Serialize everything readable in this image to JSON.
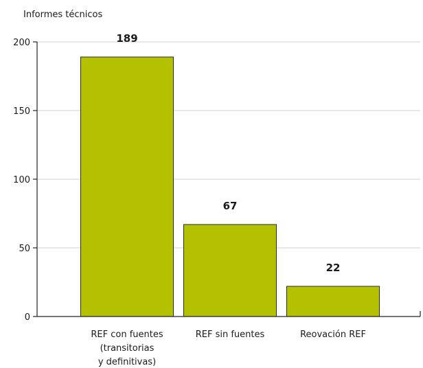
{
  "chart_data": {
    "type": "bar",
    "title": "",
    "ylabel": "Informes técnicos",
    "xlabel": "",
    "categories": [
      [
        "REF con fuentes",
        "(transitorias",
        "y definitivas)"
      ],
      [
        "REF sin fuentes"
      ],
      [
        "Reovación REF"
      ]
    ],
    "values": [
      189,
      67,
      22
    ],
    "data_labels": [
      "189",
      "67",
      "22"
    ],
    "ylim": [
      0,
      200
    ],
    "yticks": [
      0,
      50,
      100,
      150,
      200
    ],
    "ytick_labels": [
      "0",
      "50",
      "100",
      "150",
      "200"
    ],
    "grid": true,
    "bar_color": "#b3c100",
    "legend": "none"
  }
}
